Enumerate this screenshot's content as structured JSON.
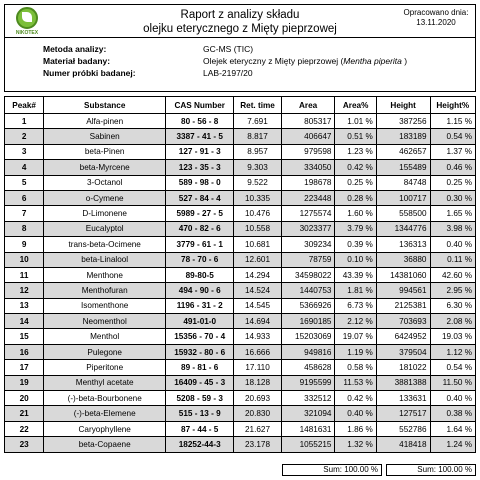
{
  "logo": {
    "text": "NIKOTEX"
  },
  "header": {
    "title_line1": "Raport z analizy składu",
    "title_line2": "olejku eterycznego z Mięty pieprzowej",
    "date_label": "Opracowano dnia:",
    "date_value": "13.11.2020"
  },
  "meta": {
    "method_label": "Metoda analizy:",
    "method_value": "GC-MS (TIC)",
    "material_label": "Materiał badany:",
    "material_value_prefix": "Olejek eteryczny z Mięty pieprzowej (",
    "material_value_italic": "Mentha piperita",
    "material_value_suffix": " )",
    "sample_label": "Numer próbki badanej:",
    "sample_value": "LAB-2197/20"
  },
  "table": {
    "headers": [
      "Peak#",
      "Substance",
      "CAS Number",
      "Ret. time",
      "Area",
      "Area%",
      "Height",
      "Height%"
    ],
    "rows": [
      [
        "1",
        "Alfa-pinen",
        "80 - 56 - 8",
        "7.691",
        "805317",
        "1.01 %",
        "387256",
        "1.15 %"
      ],
      [
        "2",
        "Sabinen",
        "3387 - 41 - 5",
        "8.817",
        "406647",
        "0.51 %",
        "183189",
        "0.54 %"
      ],
      [
        "3",
        "beta-Pinen",
        "127 - 91 - 3",
        "8.957",
        "979598",
        "1.23 %",
        "462657",
        "1.37 %"
      ],
      [
        "4",
        "beta-Myrcene",
        "123 - 35 - 3",
        "9.303",
        "334050",
        "0.42 %",
        "155489",
        "0.46 %"
      ],
      [
        "5",
        "3-Octanol",
        "589 - 98 - 0",
        "9.522",
        "198678",
        "0.25 %",
        "84748",
        "0.25 %"
      ],
      [
        "6",
        "o-Cymene",
        "527 - 84 - 4",
        "10.335",
        "223448",
        "0.28 %",
        "100717",
        "0.30 %"
      ],
      [
        "7",
        "D-Limonene",
        "5989 - 27 - 5",
        "10.476",
        "1275574",
        "1.60 %",
        "558500",
        "1.65 %"
      ],
      [
        "8",
        "Eucalyptol",
        "470 - 82 - 6",
        "10.558",
        "3023377",
        "3.79 %",
        "1344776",
        "3.98 %"
      ],
      [
        "9",
        "trans-beta-Ocimene",
        "3779 - 61 - 1",
        "10.681",
        "309234",
        "0.39 %",
        "136313",
        "0.40 %"
      ],
      [
        "10",
        "beta-Linalool",
        "78 - 70 - 6",
        "12.601",
        "78759",
        "0.10 %",
        "36880",
        "0.11 %"
      ],
      [
        "11",
        "Menthone",
        "89-80-5",
        "14.294",
        "34598022",
        "43.39 %",
        "14381060",
        "42.60 %"
      ],
      [
        "12",
        "Menthofuran",
        "494 - 90 - 6",
        "14.524",
        "1440753",
        "1.81 %",
        "994561",
        "2.95 %"
      ],
      [
        "13",
        "Isomenthone",
        "1196 - 31 - 2",
        "14.545",
        "5366926",
        "6.73 %",
        "2125381",
        "6.30 %"
      ],
      [
        "14",
        "Neomenthol",
        "491-01-0",
        "14.694",
        "1690185",
        "2.12 %",
        "703693",
        "2.08 %"
      ],
      [
        "15",
        "Menthol",
        "15356 - 70 - 4",
        "14.933",
        "15203069",
        "19.07 %",
        "6424952",
        "19.03 %"
      ],
      [
        "16",
        "Pulegone",
        "15932 - 80 - 6",
        "16.666",
        "949816",
        "1.19 %",
        "379504",
        "1.12 %"
      ],
      [
        "17",
        "Piperitone",
        "89 - 81 - 6",
        "17.110",
        "458628",
        "0.58 %",
        "181022",
        "0.54 %"
      ],
      [
        "19",
        "Menthyl acetate",
        "16409 - 45 - 3",
        "18.128",
        "9195599",
        "11.53 %",
        "3881388",
        "11.50 %"
      ],
      [
        "20",
        "(-)-beta-Bourbonene",
        "5208 - 59 - 3",
        "20.693",
        "332512",
        "0.42 %",
        "133631",
        "0.40 %"
      ],
      [
        "21",
        "(-)-beta-Elemene",
        "515 - 13 - 9",
        "20.830",
        "321094",
        "0.40 %",
        "127517",
        "0.38 %"
      ],
      [
        "22",
        "Caryophyllene",
        "87 - 44 - 5",
        "21.627",
        "1481631",
        "1.86 %",
        "552786",
        "1.64 %"
      ],
      [
        "23",
        "beta-Copaene",
        "18252-44-3",
        "23.178",
        "1055215",
        "1.32 %",
        "418418",
        "1.24 %"
      ]
    ]
  },
  "sums": {
    "label": "Sum:",
    "area_pct": "100.00 %",
    "height_pct": "100.00 %"
  }
}
